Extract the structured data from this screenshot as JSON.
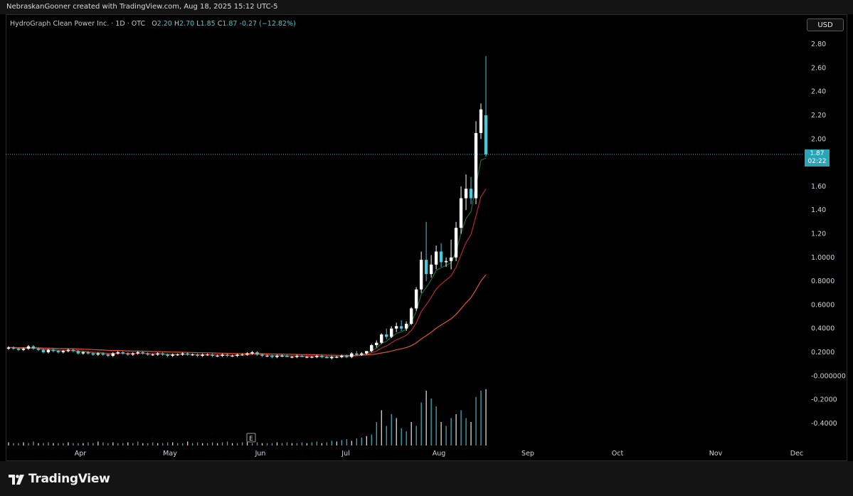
{
  "header": {
    "attribution": "NebraskanGooner created with TradingView.com, Aug 18, 2025 15:12 UTC-5"
  },
  "legend": {
    "symbol": "HydroGraph Clean Power Inc. · 1D · OTC",
    "open_label": "O",
    "open": "2.20",
    "high_label": "H",
    "high": "2.70",
    "low_label": "L",
    "low": "1.85",
    "close_label": "C",
    "close": "1.87",
    "change": "-0.27 (−12.82%)"
  },
  "currency": "USD",
  "price_badge": {
    "price": "1.87",
    "countdown": "02:22"
  },
  "footer": {
    "logo_text": "TradingView",
    "logo_icon": "tradingview-logo-icon"
  },
  "colors": {
    "up": "#ffffff",
    "down": "#4cc7d6",
    "ema_fast": "#1f6b3a",
    "ema_mid": "#b5282e",
    "ema_slow": "#e0562a",
    "volume": "#4cc7d6",
    "price_line": "#4cc7d6"
  },
  "chart_data": {
    "type": "candlestick",
    "y_ticks_price": [
      "2.80",
      "2.60",
      "2.40",
      "2.20",
      "2.00",
      "1.60",
      "1.40",
      "1.20",
      "1.0000",
      "0.8000",
      "0.6000",
      "0.4000",
      "0.2000"
    ],
    "y_ticks_volume": [
      "-0.000000",
      "-0.2000",
      "-0.4000"
    ],
    "x_ticks": [
      "Apr",
      "May",
      "Jun",
      "Jul",
      "Aug",
      "Sep",
      "Oct",
      "Nov",
      "Dec"
    ],
    "ylim": [
      -0.5,
      2.9
    ],
    "last_price": 1.87,
    "event_marker": "E",
    "ohlc": [
      [
        0.23,
        0.25,
        0.22,
        0.24
      ],
      [
        0.24,
        0.25,
        0.22,
        0.23
      ],
      [
        0.23,
        0.24,
        0.21,
        0.22
      ],
      [
        0.22,
        0.24,
        0.21,
        0.23
      ],
      [
        0.23,
        0.26,
        0.22,
        0.25
      ],
      [
        0.25,
        0.26,
        0.22,
        0.23
      ],
      [
        0.23,
        0.24,
        0.21,
        0.22
      ],
      [
        0.22,
        0.23,
        0.19,
        0.2
      ],
      [
        0.2,
        0.23,
        0.19,
        0.22
      ],
      [
        0.22,
        0.23,
        0.2,
        0.21
      ],
      [
        0.21,
        0.22,
        0.19,
        0.2
      ],
      [
        0.2,
        0.22,
        0.19,
        0.21
      ],
      [
        0.21,
        0.23,
        0.2,
        0.22
      ],
      [
        0.22,
        0.23,
        0.2,
        0.21
      ],
      [
        0.21,
        0.22,
        0.18,
        0.19
      ],
      [
        0.19,
        0.21,
        0.18,
        0.2
      ],
      [
        0.2,
        0.21,
        0.18,
        0.19
      ],
      [
        0.19,
        0.2,
        0.17,
        0.18
      ],
      [
        0.18,
        0.2,
        0.17,
        0.19
      ],
      [
        0.19,
        0.2,
        0.17,
        0.18
      ],
      [
        0.18,
        0.19,
        0.16,
        0.17
      ],
      [
        0.17,
        0.2,
        0.16,
        0.19
      ],
      [
        0.19,
        0.21,
        0.18,
        0.2
      ],
      [
        0.2,
        0.21,
        0.18,
        0.19
      ],
      [
        0.19,
        0.2,
        0.17,
        0.18
      ],
      [
        0.18,
        0.2,
        0.17,
        0.19
      ],
      [
        0.19,
        0.21,
        0.18,
        0.2
      ],
      [
        0.2,
        0.21,
        0.18,
        0.19
      ],
      [
        0.19,
        0.2,
        0.17,
        0.18
      ],
      [
        0.18,
        0.19,
        0.17,
        0.18
      ],
      [
        0.18,
        0.2,
        0.17,
        0.19
      ],
      [
        0.19,
        0.2,
        0.17,
        0.18
      ],
      [
        0.18,
        0.19,
        0.16,
        0.17
      ],
      [
        0.17,
        0.19,
        0.16,
        0.18
      ],
      [
        0.18,
        0.19,
        0.17,
        0.18
      ],
      [
        0.18,
        0.2,
        0.17,
        0.19
      ],
      [
        0.19,
        0.2,
        0.17,
        0.18
      ],
      [
        0.18,
        0.19,
        0.17,
        0.18
      ],
      [
        0.18,
        0.19,
        0.16,
        0.17
      ],
      [
        0.17,
        0.19,
        0.16,
        0.18
      ],
      [
        0.18,
        0.19,
        0.17,
        0.18
      ],
      [
        0.18,
        0.19,
        0.16,
        0.17
      ],
      [
        0.17,
        0.18,
        0.16,
        0.17
      ],
      [
        0.17,
        0.19,
        0.16,
        0.18
      ],
      [
        0.18,
        0.19,
        0.16,
        0.17
      ],
      [
        0.17,
        0.18,
        0.16,
        0.17
      ],
      [
        0.17,
        0.19,
        0.16,
        0.18
      ],
      [
        0.18,
        0.19,
        0.17,
        0.18
      ],
      [
        0.18,
        0.2,
        0.17,
        0.19
      ],
      [
        0.19,
        0.21,
        0.18,
        0.2
      ],
      [
        0.2,
        0.21,
        0.17,
        0.18
      ],
      [
        0.18,
        0.19,
        0.16,
        0.17
      ],
      [
        0.17,
        0.18,
        0.16,
        0.17
      ],
      [
        0.17,
        0.18,
        0.15,
        0.16
      ],
      [
        0.16,
        0.18,
        0.15,
        0.17
      ],
      [
        0.17,
        0.18,
        0.16,
        0.17
      ],
      [
        0.17,
        0.18,
        0.16,
        0.16
      ],
      [
        0.16,
        0.17,
        0.15,
        0.16
      ],
      [
        0.16,
        0.18,
        0.15,
        0.17
      ],
      [
        0.17,
        0.18,
        0.16,
        0.16
      ],
      [
        0.16,
        0.17,
        0.15,
        0.16
      ],
      [
        0.16,
        0.17,
        0.15,
        0.16
      ],
      [
        0.16,
        0.18,
        0.15,
        0.17
      ],
      [
        0.17,
        0.18,
        0.15,
        0.16
      ],
      [
        0.16,
        0.17,
        0.15,
        0.15
      ],
      [
        0.15,
        0.17,
        0.14,
        0.16
      ],
      [
        0.16,
        0.17,
        0.15,
        0.16
      ],
      [
        0.16,
        0.18,
        0.15,
        0.17
      ],
      [
        0.17,
        0.18,
        0.15,
        0.16
      ],
      [
        0.16,
        0.2,
        0.15,
        0.19
      ],
      [
        0.19,
        0.21,
        0.17,
        0.18
      ],
      [
        0.18,
        0.2,
        0.17,
        0.19
      ],
      [
        0.19,
        0.21,
        0.18,
        0.21
      ],
      [
        0.21,
        0.27,
        0.2,
        0.26
      ],
      [
        0.26,
        0.3,
        0.24,
        0.28
      ],
      [
        0.28,
        0.36,
        0.27,
        0.35
      ],
      [
        0.35,
        0.4,
        0.31,
        0.33
      ],
      [
        0.33,
        0.42,
        0.32,
        0.4
      ],
      [
        0.4,
        0.45,
        0.37,
        0.42
      ],
      [
        0.42,
        0.47,
        0.38,
        0.4
      ],
      [
        0.4,
        0.46,
        0.38,
        0.44
      ],
      [
        0.44,
        0.58,
        0.43,
        0.57
      ],
      [
        0.57,
        0.75,
        0.55,
        0.73
      ],
      [
        0.73,
        1.05,
        0.7,
        0.98
      ],
      [
        0.98,
        1.3,
        0.8,
        0.86
      ],
      [
        0.86,
        1.02,
        0.83,
        0.94
      ],
      [
        0.94,
        1.1,
        0.9,
        1.05
      ],
      [
        1.05,
        1.12,
        0.92,
        0.96
      ],
      [
        0.96,
        1.0,
        0.92,
        0.97
      ],
      [
        0.97,
        1.15,
        0.9,
        1.0
      ],
      [
        1.0,
        1.3,
        0.97,
        1.25
      ],
      [
        1.25,
        1.6,
        1.2,
        1.5
      ],
      [
        1.5,
        1.7,
        1.4,
        1.58
      ],
      [
        1.58,
        1.68,
        1.45,
        1.5
      ],
      [
        1.5,
        2.15,
        1.45,
        2.05
      ],
      [
        2.05,
        2.3,
        2.0,
        2.25
      ],
      [
        2.2,
        2.7,
        1.85,
        1.87
      ]
    ],
    "volume": [
      0.04,
      0.03,
      0.03,
      0.04,
      0.03,
      0.05,
      0.03,
      0.03,
      0.04,
      0.03,
      0.03,
      0.03,
      0.04,
      0.03,
      0.03,
      0.03,
      0.04,
      0.03,
      0.05,
      0.04,
      0.03,
      0.04,
      0.03,
      0.03,
      0.04,
      0.03,
      0.05,
      0.03,
      0.03,
      0.04,
      0.03,
      0.03,
      0.04,
      0.04,
      0.03,
      0.03,
      0.05,
      0.03,
      0.04,
      0.03,
      0.03,
      0.04,
      0.03,
      0.04,
      0.05,
      0.03,
      0.03,
      0.04,
      0.04,
      0.03,
      0.04,
      0.03,
      0.03,
      0.03,
      0.04,
      0.03,
      0.04,
      0.03,
      0.03,
      0.04,
      0.03,
      0.04,
      0.05,
      0.03,
      0.04,
      0.06,
      0.05,
      0.07,
      0.08,
      0.06,
      0.09,
      0.1,
      0.12,
      0.14,
      0.3,
      0.45,
      0.25,
      0.4,
      0.35,
      0.22,
      0.18,
      0.3,
      0.25,
      0.55,
      0.7,
      0.6,
      0.5,
      0.3,
      0.25,
      0.35,
      0.4,
      0.45,
      0.35,
      0.3,
      0.62,
      0.7,
      0.72
    ]
  }
}
